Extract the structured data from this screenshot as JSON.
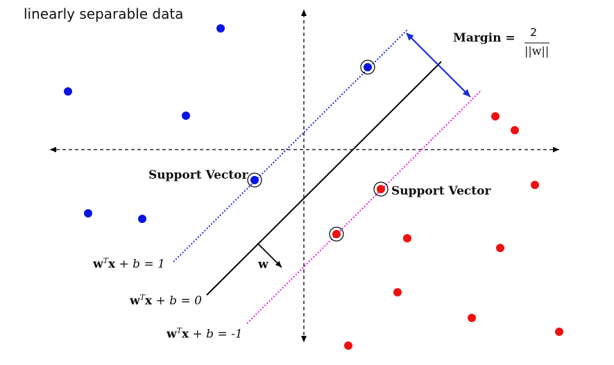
{
  "title": "linearly separable data",
  "margin": {
    "label": "Margin =",
    "numerator": "2",
    "denominator": "||w||"
  },
  "labels": {
    "support_vector_left": "Support Vector",
    "support_vector_right": "Support Vector",
    "w_vector": "w"
  },
  "equations": {
    "plus_one": {
      "lhs_bold": "w",
      "sup": "T",
      "rest_bold": "x",
      "tail": " + b = 1"
    },
    "zero": {
      "lhs_bold": "w",
      "sup": "T",
      "rest_bold": "x",
      "tail": " + b = 0"
    },
    "minus_one": {
      "lhs_bold": "w",
      "sup": "T",
      "rest_bold": "x",
      "tail": " + b = -1"
    }
  },
  "colors": {
    "class_positive": "#0a14e0",
    "class_negative": "#ee1111",
    "margin_plus_line": "#1a2cd8",
    "margin_minus_line": "#e020d8",
    "hyperplane": "#000000",
    "margin_arrow": "#1a2cd8"
  }
}
